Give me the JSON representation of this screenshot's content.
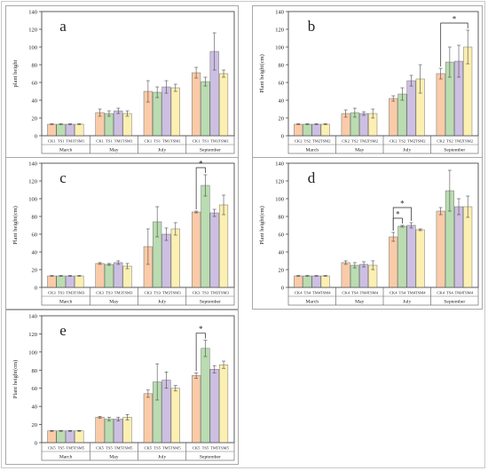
{
  "colors": {
    "ck": "#f9cba8",
    "ts": "#b9dcb0",
    "tm": "#cdbfe2",
    "tsm": "#fcefb2",
    "bar_edge": "#555555",
    "error_bar": "#4d4d4d"
  },
  "chart_data": [
    {
      "panel": "a",
      "type": "bar",
      "panel_label": "a",
      "ylabel": "plant height",
      "ylim": [
        0,
        140
      ],
      "yticks": [
        0,
        20,
        40,
        60,
        80,
        100,
        120,
        140
      ],
      "groups": [
        "March",
        "May",
        "July",
        "September"
      ],
      "series": [
        {
          "name": "CK1",
          "color": "#f9cba8",
          "values": [
            13,
            26,
            50,
            71
          ],
          "errors": [
            0.5,
            4,
            12,
            6
          ]
        },
        {
          "name": "TS1",
          "color": "#b9dcb0",
          "values": [
            13,
            25,
            49,
            61
          ],
          "errors": [
            0.5,
            3,
            6,
            5
          ]
        },
        {
          "name": "TM1",
          "color": "#cdbfe2",
          "values": [
            13,
            28,
            55,
            95
          ],
          "errors": [
            0.5,
            3,
            7,
            21
          ]
        },
        {
          "name": "TSM1",
          "color": "#fcefb2",
          "values": [
            13,
            25,
            54,
            70
          ],
          "errors": [
            0.5,
            3,
            4,
            4
          ]
        }
      ],
      "significance": []
    },
    {
      "panel": "b",
      "type": "bar",
      "panel_label": "b",
      "ylabel": "Plant height(cm)",
      "ylim": [
        0,
        140
      ],
      "yticks": [
        0,
        20,
        40,
        60,
        80,
        100,
        120,
        140
      ],
      "groups": [
        "March",
        "May",
        "July",
        "September"
      ],
      "series": [
        {
          "name": "CK2",
          "color": "#f9cba8",
          "values": [
            13,
            25,
            42,
            70
          ],
          "errors": [
            0.5,
            4,
            3,
            6
          ]
        },
        {
          "name": "TS2",
          "color": "#b9dcb0",
          "values": [
            13,
            26,
            47,
            83
          ],
          "errors": [
            0.5,
            5,
            7,
            17
          ]
        },
        {
          "name": "TM2",
          "color": "#cdbfe2",
          "values": [
            13,
            25,
            62,
            84
          ],
          "errors": [
            0.5,
            2,
            6,
            18
          ]
        },
        {
          "name": "TSM2",
          "color": "#fcefb2",
          "values": [
            13,
            25,
            64,
            100
          ],
          "errors": [
            0.5,
            5,
            16,
            19
          ]
        }
      ],
      "significance": [
        {
          "group": "September",
          "from": "CK2",
          "to": "TSM2",
          "label": "*"
        }
      ]
    },
    {
      "panel": "c",
      "type": "bar",
      "panel_label": "c",
      "ylabel": "Plant height(cm)",
      "ylim": [
        0,
        140
      ],
      "yticks": [
        0,
        20,
        40,
        60,
        80,
        100,
        120,
        140
      ],
      "groups": [
        "March",
        "May",
        "July",
        "September"
      ],
      "series": [
        {
          "name": "CK3",
          "color": "#f9cba8",
          "values": [
            13,
            27,
            46,
            85
          ],
          "errors": [
            0.5,
            1,
            20,
            1
          ]
        },
        {
          "name": "TS3",
          "color": "#b9dcb0",
          "values": [
            13,
            26,
            74,
            115
          ],
          "errors": [
            0.5,
            1,
            17,
            12
          ]
        },
        {
          "name": "TM3",
          "color": "#cdbfe2",
          "values": [
            13,
            28,
            60,
            84
          ],
          "errors": [
            0.5,
            2,
            7,
            4
          ]
        },
        {
          "name": "TSM3",
          "color": "#fcefb2",
          "values": [
            13,
            24,
            66,
            93
          ],
          "errors": [
            0.5,
            3,
            7,
            11
          ]
        }
      ],
      "significance": [
        {
          "group": "September",
          "from": "CK3",
          "to": "TS3",
          "label": "*"
        }
      ]
    },
    {
      "panel": "d",
      "type": "bar",
      "panel_label": "d",
      "ylabel": "Plant height(cm)",
      "ylim": [
        0,
        140
      ],
      "yticks": [
        0,
        20,
        40,
        60,
        80,
        100,
        120,
        140
      ],
      "groups": [
        "March",
        "May",
        "July",
        "September"
      ],
      "series": [
        {
          "name": "CK4",
          "color": "#f9cba8",
          "values": [
            13,
            28,
            57,
            86
          ],
          "errors": [
            0.5,
            2,
            5,
            4
          ]
        },
        {
          "name": "TS4",
          "color": "#b9dcb0",
          "values": [
            13,
            25,
            69,
            109
          ],
          "errors": [
            0.5,
            3,
            1,
            23
          ]
        },
        {
          "name": "TM4",
          "color": "#cdbfe2",
          "values": [
            13,
            26,
            70,
            91
          ],
          "errors": [
            0.5,
            3,
            3,
            9
          ]
        },
        {
          "name": "TSM4",
          "color": "#fcefb2",
          "values": [
            13,
            25,
            65,
            91
          ],
          "errors": [
            0.5,
            5,
            1,
            12
          ]
        }
      ],
      "significance": [
        {
          "group": "July",
          "from": "CK4",
          "to": "TS4",
          "label": "*"
        },
        {
          "group": "July",
          "from": "CK4",
          "to": "TM4",
          "label": "*"
        }
      ]
    },
    {
      "panel": "e",
      "type": "bar",
      "panel_label": "e",
      "ylabel": "Plant height(cm)",
      "ylim": [
        0,
        140
      ],
      "yticks": [
        0,
        20,
        40,
        60,
        80,
        100,
        120,
        140
      ],
      "groups": [
        "March",
        "May",
        "July",
        "September"
      ],
      "series": [
        {
          "name": "CK5",
          "color": "#f9cba8",
          "values": [
            13,
            28,
            54,
            74
          ],
          "errors": [
            0.5,
            1,
            4,
            3
          ]
        },
        {
          "name": "TS5",
          "color": "#b9dcb0",
          "values": [
            13,
            26,
            67,
            104
          ],
          "errors": [
            0.5,
            2,
            20,
            9
          ]
        },
        {
          "name": "TM5",
          "color": "#cdbfe2",
          "values": [
            13,
            26,
            69,
            81
          ],
          "errors": [
            0.5,
            2,
            9,
            4
          ]
        },
        {
          "name": "TSM5",
          "color": "#fcefb2",
          "values": [
            13,
            28,
            60,
            86
          ],
          "errors": [
            0.5,
            3,
            3,
            4
          ]
        }
      ],
      "significance": [
        {
          "group": "September",
          "from": "CK5",
          "to": "TS5",
          "label": "*"
        }
      ]
    }
  ]
}
